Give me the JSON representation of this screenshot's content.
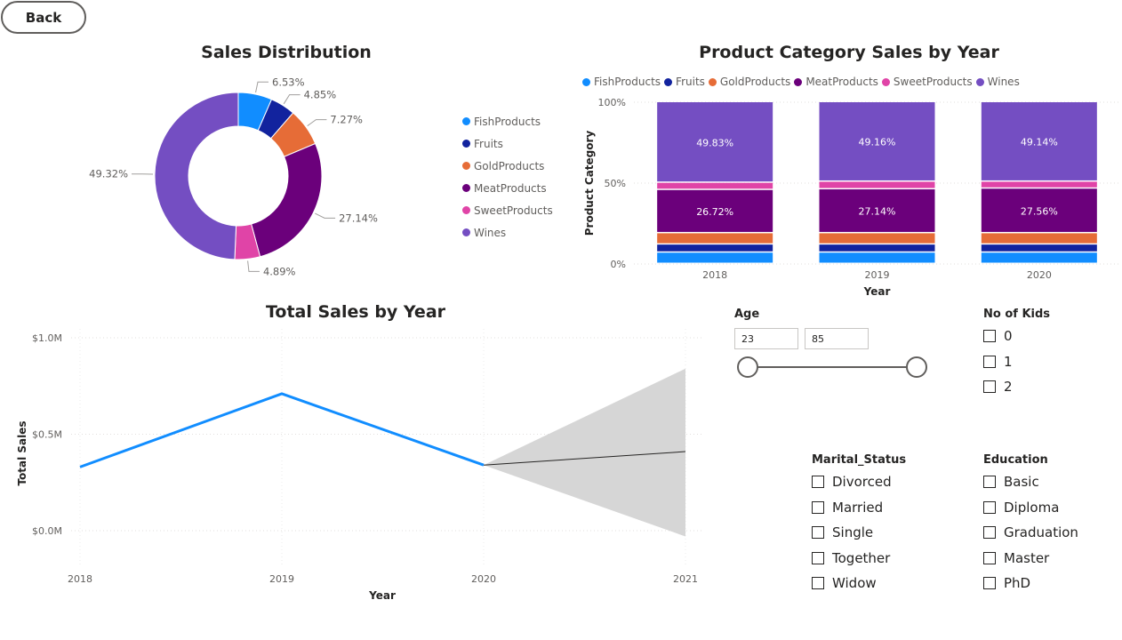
{
  "back_button": {
    "label": "Back"
  },
  "colors": {
    "FishProducts": "#118DFF",
    "Fruits": "#12239E",
    "GoldProducts": "#E66C37",
    "MeatProducts": "#6B007B",
    "SweetProducts": "#E044A7",
    "Wines": "#744EC2",
    "line": "#118DFF",
    "forecast_band": "#d6d6d6"
  },
  "donut": {
    "title": "Sales Distribution",
    "legend": [
      "FishProducts",
      "Fruits",
      "GoldProducts",
      "MeatProducts",
      "SweetProducts",
      "Wines"
    ]
  },
  "stacked": {
    "title": "Product Category Sales by Year",
    "legend": [
      "FishProducts",
      "Fruits",
      "GoldProducts",
      "MeatProducts",
      "SweetProducts",
      "Wines"
    ],
    "ylabel": "Product Category",
    "xlabel": "Year"
  },
  "line": {
    "title": "Total Sales by Year",
    "ylabel": "Total Sales",
    "xlabel": "Year"
  },
  "chart_data": [
    {
      "type": "pie",
      "title": "Sales Distribution",
      "hole": true,
      "categories": [
        "FishProducts",
        "Fruits",
        "GoldProducts",
        "MeatProducts",
        "SweetProducts",
        "Wines"
      ],
      "values": [
        6.53,
        4.85,
        7.27,
        27.14,
        4.89,
        49.32
      ],
      "data_labels": [
        "6.53%",
        "4.85%",
        "7.27%",
        "27.14%",
        "4.89%",
        "49.32%"
      ],
      "legend_position": "right"
    },
    {
      "type": "bar",
      "stacked": "100%",
      "title": "Product Category Sales by Year",
      "categories": [
        "2018",
        "2019",
        "2020"
      ],
      "xlabel": "Year",
      "ylabel": "Product Category",
      "yticks": [
        "0%",
        "50%",
        "100%"
      ],
      "ylim": [
        0,
        100
      ],
      "legend_position": "top",
      "series": [
        {
          "name": "FishProducts",
          "values": [
            7.0,
            7.0,
            7.0
          ]
        },
        {
          "name": "Fruits",
          "values": [
            5.0,
            5.0,
            5.0
          ]
        },
        {
          "name": "GoldProducts",
          "values": [
            7.0,
            7.0,
            7.0
          ]
        },
        {
          "name": "MeatProducts",
          "values": [
            26.72,
            27.14,
            27.56
          ]
        },
        {
          "name": "SweetProducts",
          "values": [
            4.45,
            4.7,
            4.3
          ]
        },
        {
          "name": "Wines",
          "values": [
            49.83,
            49.16,
            49.14
          ]
        }
      ],
      "data_labels": {
        "MeatProducts": [
          "26.72%",
          "27.14%",
          "27.56%"
        ],
        "Wines": [
          "49.83%",
          "49.16%",
          "49.14%"
        ]
      }
    },
    {
      "type": "line",
      "title": "Total Sales by Year",
      "xlabel": "Year",
      "ylabel": "Total Sales",
      "x": [
        "2018",
        "2019",
        "2020",
        "2021"
      ],
      "yticks": [
        "$0.0M",
        "$0.5M",
        "$1.0M"
      ],
      "ylim": [
        0,
        1.0
      ],
      "series": [
        {
          "values": [
            0.33,
            0.71,
            0.34,
            null
          ]
        }
      ],
      "forecast": {
        "x": [
          "2020",
          "2021"
        ],
        "values": [
          0.34,
          0.41
        ],
        "upper": [
          0.34,
          0.84
        ],
        "lower": [
          0.34,
          -0.03
        ]
      },
      "grid": true
    }
  ],
  "filters": {
    "age": {
      "title": "Age",
      "min": "23",
      "max": "85",
      "low_fraction": 0.0,
      "high_fraction": 1.0
    },
    "kids": {
      "title": "No of Kids",
      "options": [
        "0",
        "1",
        "2"
      ]
    },
    "marital": {
      "title": "Marital_Status",
      "options": [
        "Divorced",
        "Married",
        "Single",
        "Together",
        "Widow"
      ]
    },
    "education": {
      "title": "Education",
      "options": [
        "Basic",
        "Diploma",
        "Graduation",
        "Master",
        "PhD"
      ]
    }
  }
}
